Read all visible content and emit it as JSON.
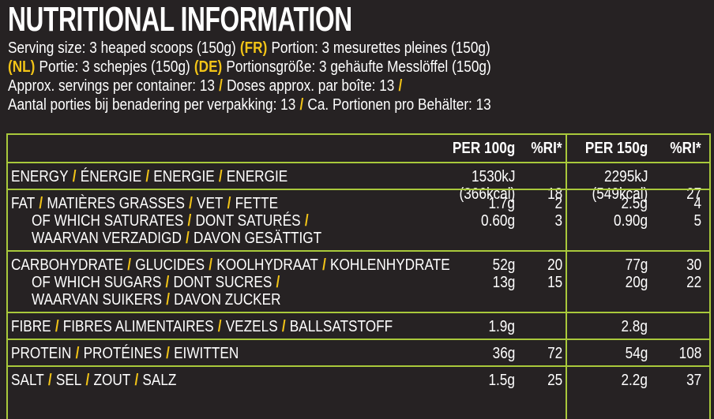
{
  "header": {
    "title": "NUTRITIONAL INFORMATION",
    "serving_info": [
      [
        {
          "text": "Serving size: 3 heaped scoops (150g)"
        },
        {
          "text": "(FR)",
          "accent": true
        },
        {
          "text": "Portion: 3 mesurettes pleines (150g)"
        }
      ],
      [
        {
          "text": "(NL)",
          "accent": true
        },
        {
          "text": "Portie: 3 schepjes (150g)"
        },
        {
          "text": "(DE)",
          "accent": true
        },
        {
          "text": "Portionsgröße: 3 gehäufte Messlöffel (150g)"
        }
      ],
      [
        {
          "text": "Approx. servings per container: 13"
        },
        {
          "text": "/",
          "accent": true
        },
        {
          "text": "Doses approx. par boîte: 13"
        },
        {
          "text": "/",
          "accent": true
        }
      ],
      [
        {
          "text": "Aantal porties bij benadering per verpakking: 13"
        },
        {
          "text": "/",
          "accent": true
        },
        {
          "text": "Ca. Portionen pro Behälter: 13"
        }
      ]
    ]
  },
  "table": {
    "separator": "/",
    "columns": [
      "PER 100g",
      "%RI*",
      "PER 150g",
      "%RI*"
    ],
    "rows": [
      {
        "items": [
          {
            "lines": [
              [
                "ENERGY",
                "ÉNERGIE",
                "ENERGIE",
                "ENERGIE"
              ]
            ]
          }
        ],
        "cells": [
          [
            "1530kJ",
            "(366kcal)"
          ],
          [
            "18"
          ],
          [
            "2295kJ",
            "(549kcal)"
          ],
          [
            "27"
          ]
        ]
      },
      {
        "items": [
          {
            "lines": [
              [
                "FAT",
                "MATIÈRES GRASSES",
                "VET",
                "FETTE"
              ]
            ]
          },
          {
            "lines": [
              [
                "OF WHICH SATURATES",
                "DONT SATURÉS"
              ],
              [
                "WAARVAN VERZADIGD",
                "DAVON GESÄTTIGT"
              ]
            ]
          }
        ],
        "cells": [
          [
            "1.7g",
            "0.60g"
          ],
          [
            "2",
            "3"
          ],
          [
            "2.5g",
            "0.90g"
          ],
          [
            "4",
            "5"
          ]
        ]
      },
      {
        "items": [
          {
            "lines": [
              [
                "CARBOHYDRATE",
                "GLUCIDES",
                "KOOLHYDRAAT",
                "KOHLENHYDRATE"
              ]
            ]
          },
          {
            "lines": [
              [
                "OF WHICH SUGARS",
                "DONT SUCRES"
              ],
              [
                "WAARVAN SUIKERS",
                "DAVON ZUCKER"
              ]
            ]
          }
        ],
        "cells": [
          [
            "52g",
            "13g"
          ],
          [
            "20",
            "15"
          ],
          [
            "77g",
            "20g"
          ],
          [
            "30",
            "22"
          ]
        ]
      },
      {
        "items": [
          {
            "lines": [
              [
                "FIBRE",
                "FIBRES ALIMENTAIRES",
                "VEZELS",
                "BALLSATSTOFF"
              ]
            ]
          }
        ],
        "cells": [
          [
            "1.9g"
          ],
          [],
          [
            "2.8g"
          ],
          []
        ]
      },
      {
        "items": [
          {
            "lines": [
              [
                "PROTEIN",
                "PROTÉINES",
                "EIWITTEN"
              ]
            ]
          }
        ],
        "cells": [
          [
            "36g"
          ],
          [
            "72"
          ],
          [
            "54g"
          ],
          [
            "108"
          ]
        ]
      },
      {
        "items": [
          {
            "lines": [
              [
                "SALT",
                "SEL",
                "ZOUT",
                "SALZ"
              ]
            ]
          }
        ],
        "cells": [
          [
            "1.5g"
          ],
          [
            "25"
          ],
          [
            "2.2g"
          ],
          [
            "37"
          ]
        ]
      }
    ]
  }
}
